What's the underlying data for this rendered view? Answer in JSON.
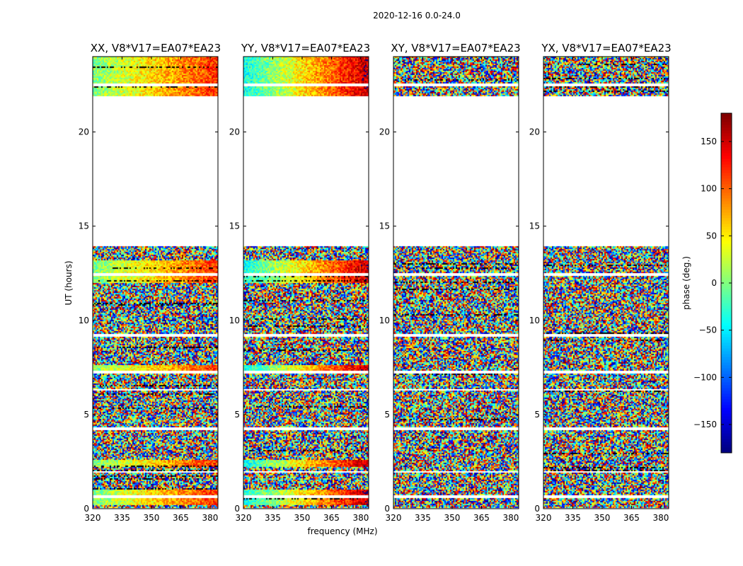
{
  "figure": {
    "suptitle": "2020-12-16 0.0-24.0"
  },
  "chart_data": {
    "type": "heatmap",
    "xlabel": "frequency (MHz)",
    "ylabel": "UT (hours)",
    "xlim": [
      320,
      384
    ],
    "ylim": [
      0,
      24
    ],
    "xticks": [
      320,
      335,
      350,
      365,
      380
    ],
    "yticks": [
      0,
      5,
      10,
      15,
      20
    ],
    "panels": [
      {
        "name": "XX",
        "title": "XX, V8*V17=EA07*EA23",
        "coherent": true,
        "phase_start": 0,
        "phase_end": 120
      },
      {
        "name": "YY",
        "title": "YY, V8*V17=EA07*EA23",
        "coherent": true,
        "phase_start": -40,
        "phase_end": 160
      },
      {
        "name": "XY",
        "title": "XY, V8*V17=EA07*EA23",
        "coherent": false,
        "phase_start": 0,
        "phase_end": 0
      },
      {
        "name": "YX",
        "title": "YX, V8*V17=EA07*EA23",
        "coherent": false,
        "phase_start": 0,
        "phase_end": 0
      }
    ],
    "data_gaps_hours": [
      [
        13.95,
        21.9
      ],
      [
        22.45,
        22.6
      ],
      [
        9.1,
        9.3
      ],
      [
        7.15,
        7.3
      ],
      [
        12.35,
        12.5
      ],
      [
        0.6,
        0.7
      ],
      [
        1.95,
        2.0
      ],
      [
        4.2,
        4.3
      ],
      [
        6.3,
        6.35
      ]
    ],
    "colorbar": {
      "label": "phase (deg.)",
      "range": [
        -180,
        180
      ],
      "ticks": [
        -150,
        -100,
        -50,
        0,
        50,
        100,
        150
      ],
      "tick_labels": [
        "−150",
        "−100",
        "−50",
        "0",
        "50",
        "100",
        "150"
      ],
      "colormap": "jet"
    }
  }
}
